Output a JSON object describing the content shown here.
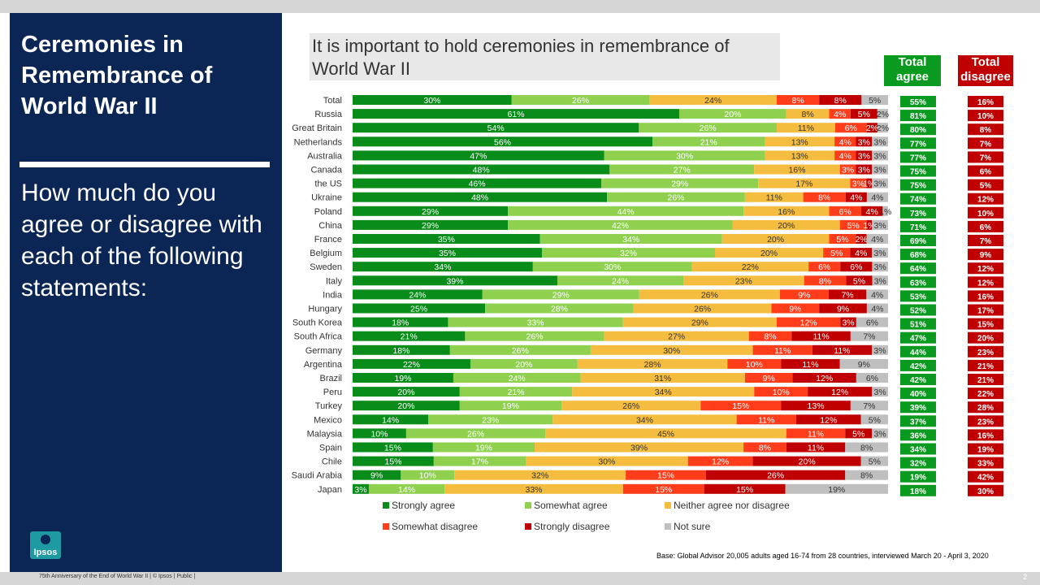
{
  "left": {
    "title": "Ceremonies in Remembrance of World War II",
    "question": "How much do you agree or disagree with each of the following statements:"
  },
  "logo": {
    "text": "Ipsos"
  },
  "header": {
    "total_agree": "Total agree",
    "total_disagree": "Total disagree"
  },
  "footnote": "Base: Global Advisor 20,005 adults aged 16-74 from 28 countries, interviewed March 20 - April 3, 2020",
  "footer": "75th Anniversary of the End of World War II | © Ipsos | Public |",
  "page_number": "2",
  "colors": {
    "strongly_agree": "#0a8c1a",
    "somewhat_agree": "#8fd14f",
    "neither": "#f5bd40",
    "somewhat_disagree": "#ff3d1a",
    "strongly_disagree": "#c00000",
    "not_sure": "#bfbfbf",
    "total_agree_bg": "#0a9a1f",
    "total_disagree_bg": "#c00000",
    "left_panel": "#0b2654"
  },
  "chart_data": {
    "type": "bar",
    "orientation": "horizontal",
    "stacked": true,
    "title": "It is important to hold ceremonies in remembrance of World War II",
    "categories": [
      "Total",
      "Russia",
      "Great Britain",
      "Netherlands",
      "Australia",
      "Canada",
      "the US",
      "Ukraine",
      "Poland",
      "China",
      "France",
      "Belgium",
      "Sweden",
      "Italy",
      "India",
      "Hungary",
      "South Korea",
      "South Africa",
      "Germany",
      "Argentina",
      "Brazil",
      "Peru",
      "Turkey",
      "Mexico",
      "Malaysia",
      "Spain",
      "Chile",
      "Saudi Arabia",
      "Japan"
    ],
    "series": [
      {
        "name": "Strongly agree",
        "values": [
          30,
          61,
          54,
          56,
          47,
          48,
          46,
          48,
          29,
          29,
          35,
          35,
          34,
          39,
          24,
          25,
          18,
          21,
          18,
          22,
          19,
          20,
          20,
          14,
          10,
          15,
          15,
          9,
          3
        ]
      },
      {
        "name": "Somewhat agree",
        "values": [
          26,
          20,
          26,
          21,
          30,
          27,
          29,
          26,
          44,
          42,
          34,
          32,
          30,
          24,
          29,
          28,
          33,
          26,
          26,
          20,
          24,
          21,
          19,
          23,
          26,
          19,
          17,
          10,
          14
        ]
      },
      {
        "name": "Neither agree nor disagree",
        "values": [
          24,
          8,
          11,
          13,
          13,
          16,
          17,
          11,
          16,
          20,
          20,
          20,
          22,
          23,
          26,
          26,
          29,
          27,
          30,
          28,
          31,
          34,
          26,
          34,
          45,
          39,
          30,
          32,
          33
        ]
      },
      {
        "name": "Somewhat disagree",
        "values": [
          8,
          4,
          6,
          4,
          4,
          3,
          3,
          8,
          6,
          5,
          5,
          5,
          6,
          8,
          9,
          9,
          12,
          8,
          11,
          10,
          9,
          10,
          15,
          11,
          11,
          8,
          12,
          15,
          15
        ]
      },
      {
        "name": "Strongly disagree",
        "values": [
          8,
          5,
          2,
          3,
          3,
          3,
          1,
          4,
          4,
          1,
          2,
          4,
          6,
          5,
          7,
          9,
          3,
          11,
          11,
          11,
          12,
          12,
          13,
          12,
          5,
          11,
          20,
          26,
          15
        ]
      },
      {
        "name": "Not sure",
        "values": [
          5,
          2,
          2,
          3,
          3,
          3,
          3,
          4,
          1,
          3,
          4,
          3,
          3,
          3,
          4,
          4,
          6,
          7,
          3,
          9,
          6,
          3,
          7,
          5,
          3,
          8,
          5,
          8,
          19
        ]
      }
    ],
    "labels": [
      [
        "30%",
        "26%",
        "24%",
        "8%",
        "8%",
        "5%"
      ],
      [
        "61%",
        "20%",
        "8%",
        "4%",
        "5%",
        "2%"
      ],
      [
        "54%",
        "26%",
        "11%",
        "6%",
        "2%",
        "2%"
      ],
      [
        "56%",
        "21%",
        "13%",
        "4%",
        "3%",
        "3%"
      ],
      [
        "47%",
        "30%",
        "13%",
        "4%",
        "3%",
        "3%"
      ],
      [
        "48%",
        "27%",
        "16%",
        "3%",
        "3%",
        "3%"
      ],
      [
        "46%",
        "29%",
        "17%",
        "3%",
        "1%",
        "3%"
      ],
      [
        "48%",
        "26%",
        "11%",
        "8%",
        "4%",
        "4%"
      ],
      [
        "29%",
        "44%",
        "16%",
        "6%",
        "4%",
        "1%"
      ],
      [
        "29%",
        "42%",
        "20%",
        "5%",
        "1%",
        "3%"
      ],
      [
        "35%",
        "34%",
        "20%",
        "5%",
        "2%",
        "4%"
      ],
      [
        "35%",
        "32%",
        "20%",
        "5%",
        "4%",
        "3%"
      ],
      [
        "34%",
        "30%",
        "22%",
        "6%",
        "6%",
        "3%"
      ],
      [
        "39%",
        "24%",
        "23%",
        "8%",
        "5%",
        "3%"
      ],
      [
        "24%",
        "29%",
        "26%",
        "9%",
        "7%",
        "4%"
      ],
      [
        "25%",
        "28%",
        "26%",
        "9%",
        "9%",
        "4%"
      ],
      [
        "18%",
        "33%",
        "29%",
        "12%",
        "3%",
        "6%"
      ],
      [
        "21%",
        "26%",
        "27%",
        "8%",
        "11%",
        "7%"
      ],
      [
        "18%",
        "26%",
        "30%",
        "11%",
        "11%",
        "3%"
      ],
      [
        "22%",
        "20%",
        "28%",
        "10%",
        "11%",
        "9%"
      ],
      [
        "19%",
        "24%",
        "31%",
        "9%",
        "12%",
        "6%"
      ],
      [
        "20%",
        "21%",
        "34%",
        "10%",
        "12%",
        "3%"
      ],
      [
        "20%",
        "19%",
        "26%",
        "15%",
        "13%",
        "7%"
      ],
      [
        "14%",
        "23%",
        "34%",
        "11%",
        "12%",
        "5%"
      ],
      [
        "10%",
        "26%",
        "45%",
        "11%",
        "5%",
        "3%"
      ],
      [
        "15%",
        "19%",
        "39%",
        "8%",
        "11%",
        "8%"
      ],
      [
        "15%",
        "17%",
        "30%",
        "12%",
        "20%",
        "5%"
      ],
      [
        "9%",
        "10%",
        "32%",
        "15%",
        "26%",
        "8%"
      ],
      [
        "3%",
        "14%",
        "33%",
        "15%",
        "15%",
        "19%"
      ]
    ],
    "total_agree": [
      "55%",
      "81%",
      "80%",
      "77%",
      "77%",
      "75%",
      "75%",
      "74%",
      "73%",
      "71%",
      "69%",
      "68%",
      "64%",
      "63%",
      "53%",
      "52%",
      "51%",
      "47%",
      "44%",
      "42%",
      "42%",
      "40%",
      "39%",
      "37%",
      "36%",
      "34%",
      "32%",
      "19%",
      "18%"
    ],
    "total_disagree": [
      "16%",
      "10%",
      "8%",
      "7%",
      "7%",
      "6%",
      "5%",
      "12%",
      "10%",
      "6%",
      "7%",
      "9%",
      "12%",
      "12%",
      "16%",
      "17%",
      "15%",
      "20%",
      "23%",
      "21%",
      "21%",
      "22%",
      "28%",
      "23%",
      "16%",
      "19%",
      "33%",
      "42%",
      "30%"
    ],
    "legend": [
      "Strongly agree",
      "Somewhat agree",
      "Neither agree nor disagree",
      "Somewhat disagree",
      "Strongly disagree",
      "Not sure"
    ],
    "legend_position": "bottom"
  }
}
